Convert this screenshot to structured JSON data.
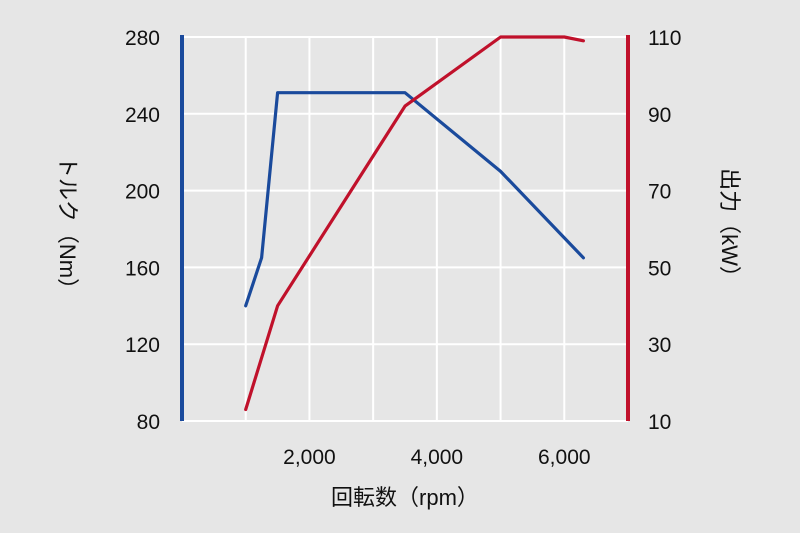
{
  "chart_data": {
    "type": "line",
    "xlabel": "回転数（rpm）",
    "x_ticks": [
      "2,000",
      "4,000",
      "6,000"
    ],
    "xlim": [
      0,
      7000
    ],
    "y_left": {
      "label": "トルク（Nm）",
      "ticks": [
        "80",
        "120",
        "160",
        "200",
        "240",
        "280"
      ],
      "lim": [
        80,
        280
      ],
      "color": "#1a4a9c"
    },
    "y_right": {
      "label": "出力（kW）",
      "ticks": [
        "10",
        "30",
        "50",
        "70",
        "90",
        "110"
      ],
      "lim": [
        10,
        110
      ],
      "color": "#c0112b"
    },
    "grid": true,
    "series": [
      {
        "axis": "left",
        "color": "#1a4a9c",
        "x": [
          1000,
          1250,
          1500,
          3000,
          3500,
          5000,
          6300
        ],
        "values": [
          140,
          165,
          251,
          251,
          251,
          210,
          165
        ]
      },
      {
        "axis": "right",
        "color": "#c0112b",
        "x": [
          1000,
          1500,
          3500,
          5000,
          6000,
          6300
        ],
        "values": [
          13,
          40,
          92,
          110,
          110,
          109
        ]
      }
    ]
  }
}
